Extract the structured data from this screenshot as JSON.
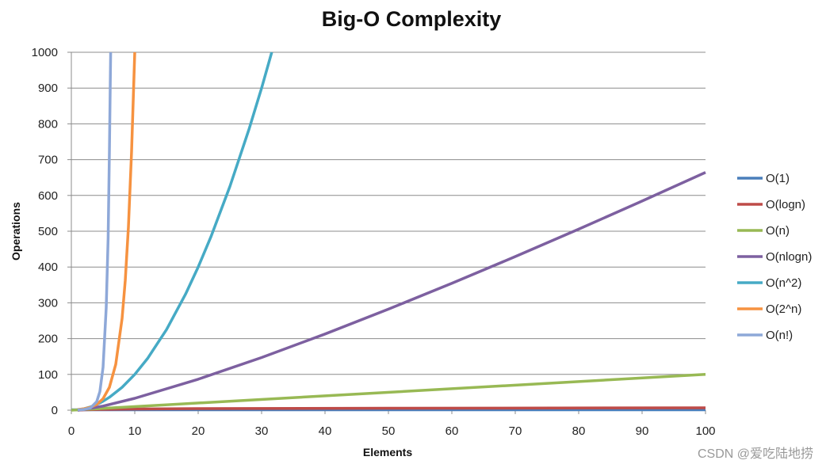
{
  "chart_data": {
    "type": "line",
    "title": "Big-O Complexity",
    "xlabel": "Elements",
    "ylabel": "Operations",
    "xlim": [
      0,
      100
    ],
    "ylim": [
      0,
      1000
    ],
    "xticks": [
      0,
      10,
      20,
      30,
      40,
      50,
      60,
      70,
      80,
      90,
      100
    ],
    "yticks": [
      0,
      100,
      200,
      300,
      400,
      500,
      600,
      700,
      800,
      900,
      1000
    ],
    "grid": "horizontal",
    "legend_position": "right",
    "series": [
      {
        "name": "O(1)",
        "color": "#4a7ebb",
        "points": [
          [
            0,
            1
          ],
          [
            100,
            1
          ]
        ]
      },
      {
        "name": "O(logn)",
        "color": "#be4b48",
        "points": [
          [
            1,
            0
          ],
          [
            2,
            1
          ],
          [
            5,
            2.32
          ],
          [
            10,
            3.32
          ],
          [
            20,
            4.32
          ],
          [
            50,
            5.64
          ],
          [
            100,
            6.64
          ]
        ]
      },
      {
        "name": "O(n)",
        "color": "#98b954",
        "points": [
          [
            0,
            0
          ],
          [
            100,
            100
          ]
        ]
      },
      {
        "name": "O(nlogn)",
        "color": "#7d60a0",
        "points": [
          [
            1,
            0
          ],
          [
            2,
            2
          ],
          [
            5,
            11.6
          ],
          [
            10,
            33.2
          ],
          [
            20,
            86.4
          ],
          [
            30,
            147.2
          ],
          [
            40,
            212.9
          ],
          [
            50,
            282.2
          ],
          [
            60,
            354.4
          ],
          [
            70,
            429.1
          ],
          [
            80,
            505.8
          ],
          [
            90,
            584.3
          ],
          [
            100,
            664.4
          ]
        ]
      },
      {
        "name": "O(n^2)",
        "color": "#46aac5",
        "points": [
          [
            1,
            1
          ],
          [
            2,
            4
          ],
          [
            3,
            9
          ],
          [
            4,
            16
          ],
          [
            5,
            25
          ],
          [
            6,
            36
          ],
          [
            8,
            64
          ],
          [
            10,
            100
          ],
          [
            12,
            144
          ],
          [
            15,
            225
          ],
          [
            18,
            324
          ],
          [
            20,
            400
          ],
          [
            22,
            484
          ],
          [
            25,
            625
          ],
          [
            28,
            784
          ],
          [
            30,
            900
          ],
          [
            31.6,
            1000
          ]
        ]
      },
      {
        "name": "O(2^n)",
        "color": "#f69240",
        "points": [
          [
            1,
            2
          ],
          [
            2,
            4
          ],
          [
            3,
            8
          ],
          [
            4,
            16
          ],
          [
            5,
            32
          ],
          [
            6,
            64
          ],
          [
            7,
            128
          ],
          [
            8,
            256
          ],
          [
            8.5,
            362
          ],
          [
            9,
            512
          ],
          [
            9.5,
            724
          ],
          [
            10,
            1000
          ]
        ]
      },
      {
        "name": "O(n!)",
        "color": "#8ea8d8",
        "points": [
          [
            1,
            1
          ],
          [
            2,
            2
          ],
          [
            3,
            6
          ],
          [
            4,
            24
          ],
          [
            4.5,
            52
          ],
          [
            5,
            120
          ],
          [
            5.5,
            287
          ],
          [
            5.8,
            480
          ],
          [
            6,
            720
          ],
          [
            6.2,
            1000
          ]
        ]
      }
    ]
  },
  "watermark": "CSDN @爱吃陆地捞"
}
